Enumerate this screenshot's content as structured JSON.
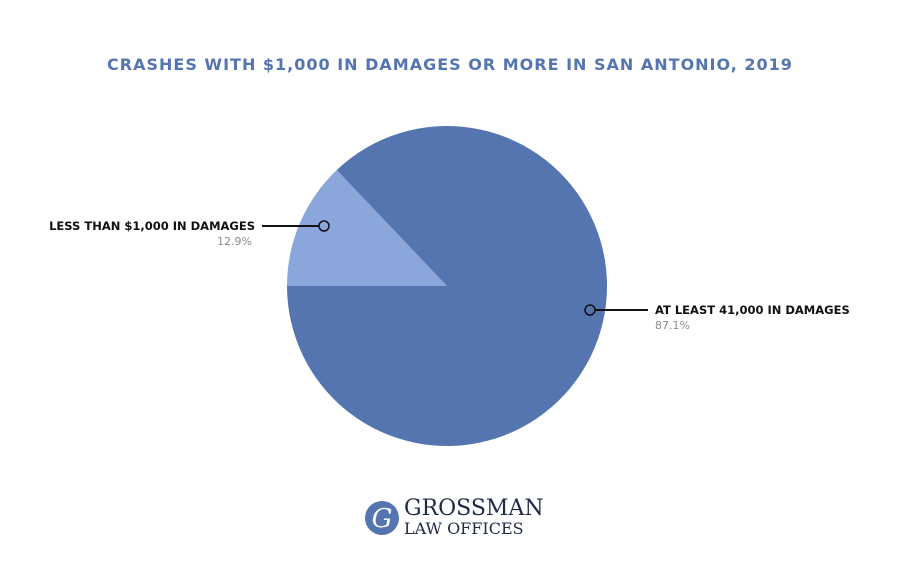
{
  "chart_data": {
    "type": "pie",
    "title": "CRASHES WITH $1,000 IN DAMAGES OR MORE IN SAN ANTONIO, 2019",
    "slices": [
      {
        "label": "AT LEAST 41,000 IN DAMAGES",
        "value": 87.1,
        "value_label": "87.1%",
        "color": "#5575b1"
      },
      {
        "label": "LESS THAN $1,000 IN DAMAGES",
        "value": 12.9,
        "value_label": "12.9%",
        "color": "#8aa6da"
      }
    ],
    "colors": {
      "title": "#5575b1",
      "leader": "#111111"
    }
  },
  "logo": {
    "letter": "G",
    "line1": "GROSSMAN",
    "line2": "LAW OFFICES",
    "color": "#5575b1"
  }
}
